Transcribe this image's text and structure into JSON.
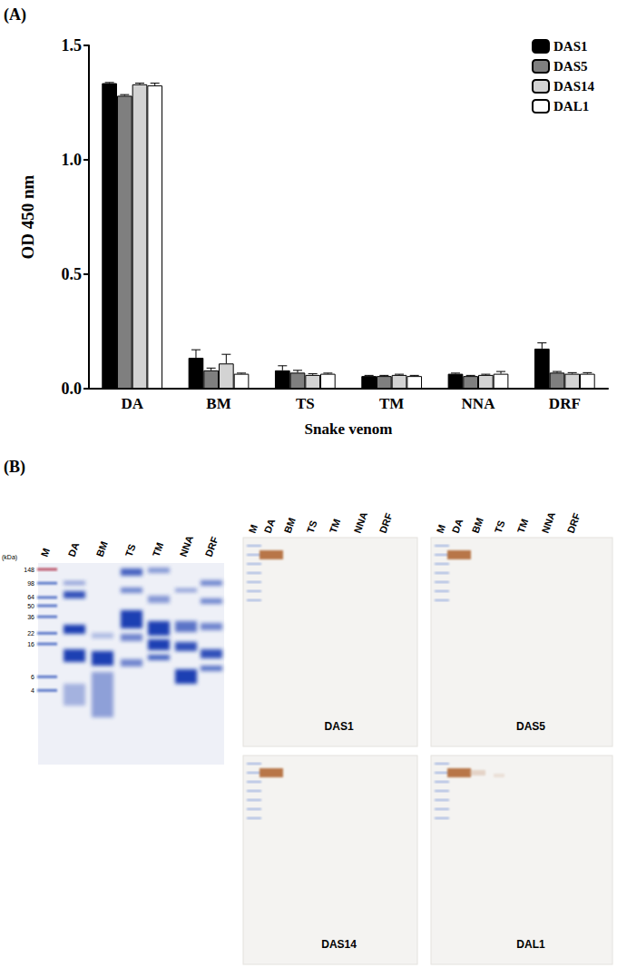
{
  "panel_labels": [
    "(A)",
    "(B)"
  ],
  "chart_data": {
    "type": "bar",
    "categories": [
      "DA",
      "BM",
      "TS",
      "TM",
      "NNA",
      "DRF"
    ],
    "series": [
      {
        "name": "DAS1",
        "color": "#000000",
        "values": [
          1.335,
          0.135,
          0.08,
          0.055,
          0.065,
          0.175
        ],
        "errors": [
          0.003,
          0.035,
          0.02,
          0.003,
          0.003,
          0.025
        ]
      },
      {
        "name": "DAS5",
        "color": "#7f7f7f",
        "values": [
          1.28,
          0.08,
          0.07,
          0.055,
          0.055,
          0.07
        ],
        "errors": [
          0.005,
          0.01,
          0.01,
          0.003,
          0.003,
          0.005
        ]
      },
      {
        "name": "DAS14",
        "color": "#d3d3d3",
        "values": [
          1.33,
          0.11,
          0.06,
          0.06,
          0.06,
          0.065
        ],
        "errors": [
          0.005,
          0.04,
          0.005,
          0.003,
          0.003,
          0.005
        ]
      },
      {
        "name": "DAL1",
        "color": "#ffffff",
        "values": [
          1.325,
          0.065,
          0.065,
          0.055,
          0.065,
          0.065
        ],
        "errors": [
          0.01,
          0.003,
          0.003,
          0.003,
          0.01,
          0.005
        ]
      }
    ],
    "xlabel": "Snake venom",
    "ylabel": "OD 450 nm",
    "ylim": [
      0,
      1.5
    ],
    "yticks": [
      {
        "value": 0,
        "label": "0.0"
      },
      {
        "value": 0.5,
        "label": "0.5"
      },
      {
        "value": 1,
        "label": "1.0"
      },
      {
        "value": 1.5,
        "label": "1.5"
      }
    ],
    "legend": "top-right",
    "grid": false
  },
  "gel": {
    "lanes": [
      "M",
      "DA",
      "BM",
      "TS",
      "TM",
      "NNA",
      "DRF"
    ],
    "unit_label": "(kDa)",
    "marker_sizes": [
      148,
      98,
      64,
      50,
      36,
      22,
      16,
      6,
      4
    ]
  },
  "blots": {
    "lanes": [
      "M",
      "DA",
      "BM",
      "TS",
      "TM",
      "NNA",
      "DRF"
    ],
    "panels": [
      "DAS1",
      "DAS5",
      "DAS14",
      "DAL1"
    ]
  }
}
